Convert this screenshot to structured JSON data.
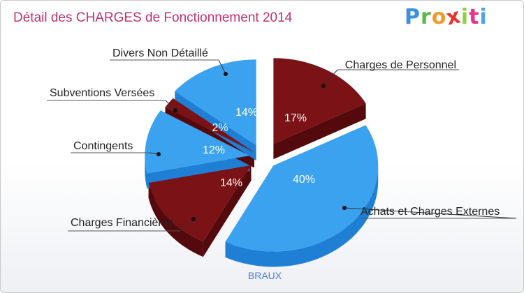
{
  "header": {
    "title": "Détail des CHARGES de Fonctionnement 2014"
  },
  "logo": {
    "letters": [
      "P",
      "r",
      "o",
      "x",
      "i",
      "t",
      "i"
    ],
    "colors": [
      "#3b8fe0",
      "#5fb84a",
      "#f19a2a",
      "#e2362b",
      "#8fcf3e",
      "#ee2f8a",
      "#4aa6e6"
    ]
  },
  "colors": {
    "blue": "#3aa2ee",
    "blue_side": "#1f7fd4",
    "red": "#7a1216",
    "red_side": "#54090c",
    "title": "#c0306c"
  },
  "chart_data": {
    "type": "pie",
    "title": "Détail des CHARGES de Fonctionnement 2014",
    "subtitle": "BRAUX",
    "slices": [
      {
        "label": "Charges de Personnel",
        "value": 17,
        "value_label": "17%",
        "color": "red"
      },
      {
        "label": "Achats et Charges Externes",
        "value": 40,
        "value_label": "40%",
        "color": "blue"
      },
      {
        "label": "Charges Financières",
        "value": 14,
        "value_label": "14%",
        "color": "red"
      },
      {
        "label": "Contingents",
        "value": 12,
        "value_label": "12%",
        "color": "blue"
      },
      {
        "label": "Subventions Versées",
        "value": 2,
        "value_label": "2%",
        "color": "red"
      },
      {
        "label": "Divers Non Détaillé",
        "value": 14,
        "value_label": "14%",
        "color": "blue"
      }
    ]
  }
}
